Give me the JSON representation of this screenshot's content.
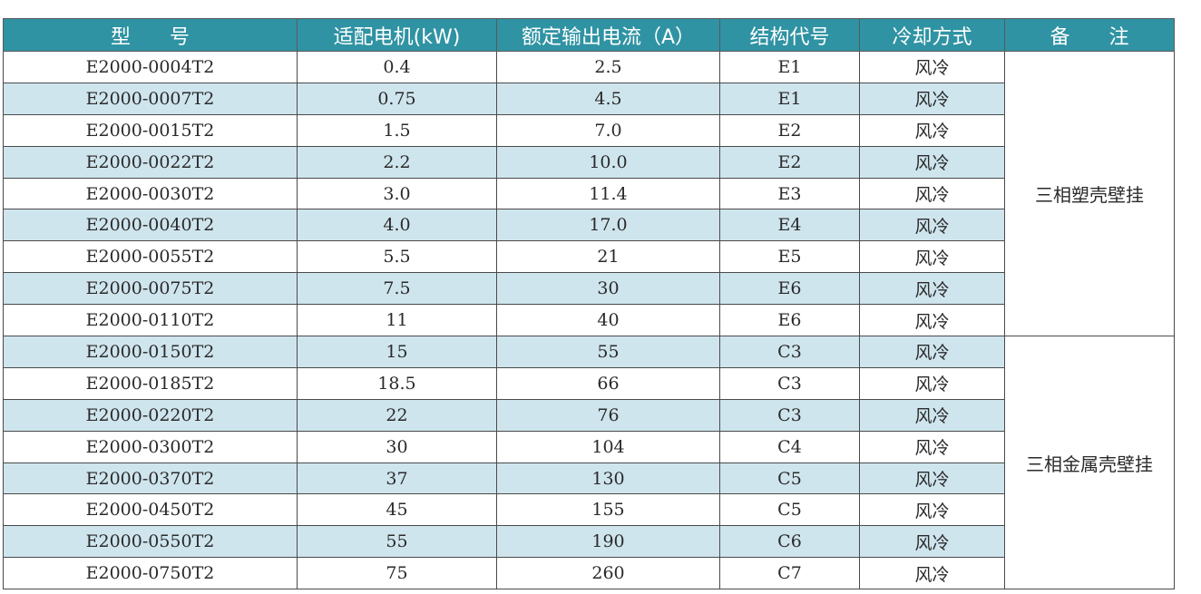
{
  "table": {
    "headers": {
      "model": "型 号",
      "motor": "适配电机(kW)",
      "current": "额定输出电流（A）",
      "structure": "结构代号",
      "cooling": "冷却方式",
      "remark": "备 注"
    },
    "rows": [
      {
        "model": "E2000-0004T2",
        "motor": "0.4",
        "current": "2.5",
        "structure": "E1",
        "cooling": "风冷"
      },
      {
        "model": "E2000-0007T2",
        "motor": "0.75",
        "current": "4.5",
        "structure": "E1",
        "cooling": "风冷"
      },
      {
        "model": "E2000-0015T2",
        "motor": "1.5",
        "current": "7.0",
        "structure": "E2",
        "cooling": "风冷"
      },
      {
        "model": "E2000-0022T2",
        "motor": "2.2",
        "current": "10.0",
        "structure": "E2",
        "cooling": "风冷"
      },
      {
        "model": "E2000-0030T2",
        "motor": "3.0",
        "current": "11.4",
        "structure": "E3",
        "cooling": "风冷"
      },
      {
        "model": "E2000-0040T2",
        "motor": "4.0",
        "current": "17.0",
        "structure": "E4",
        "cooling": "风冷"
      },
      {
        "model": "E2000-0055T2",
        "motor": "5.5",
        "current": "21",
        "structure": "E5",
        "cooling": "风冷"
      },
      {
        "model": "E2000-0075T2",
        "motor": "7.5",
        "current": "30",
        "structure": "E6",
        "cooling": "风冷"
      },
      {
        "model": "E2000-0110T2",
        "motor": "11",
        "current": "40",
        "structure": "E6",
        "cooling": "风冷"
      },
      {
        "model": "E2000-0150T2",
        "motor": "15",
        "current": "55",
        "structure": "C3",
        "cooling": "风冷"
      },
      {
        "model": "E2000-0185T2",
        "motor": "18.5",
        "current": "66",
        "structure": "C3",
        "cooling": "风冷"
      },
      {
        "model": "E2000-0220T2",
        "motor": "22",
        "current": "76",
        "structure": "C3",
        "cooling": "风冷"
      },
      {
        "model": "E2000-0300T2",
        "motor": "30",
        "current": "104",
        "structure": "C4",
        "cooling": "风冷"
      },
      {
        "model": "E2000-0370T2",
        "motor": "37",
        "current": "130",
        "structure": "C5",
        "cooling": "风冷"
      },
      {
        "model": "E2000-0450T2",
        "motor": "45",
        "current": "155",
        "structure": "C5",
        "cooling": "风冷"
      },
      {
        "model": "E2000-0550T2",
        "motor": "55",
        "current": "190",
        "structure": "C6",
        "cooling": "风冷"
      },
      {
        "model": "E2000-0750T2",
        "motor": "75",
        "current": "260",
        "structure": "C7",
        "cooling": "风冷"
      }
    ],
    "remarks": [
      "三相塑壳壁挂",
      "三相金属壳壁挂"
    ],
    "colors": {
      "header_bg": "#2f93a3",
      "header_text": "#ffffff",
      "alt_row_bg": "#cfe5ee",
      "border": "#4a4a4a"
    }
  }
}
